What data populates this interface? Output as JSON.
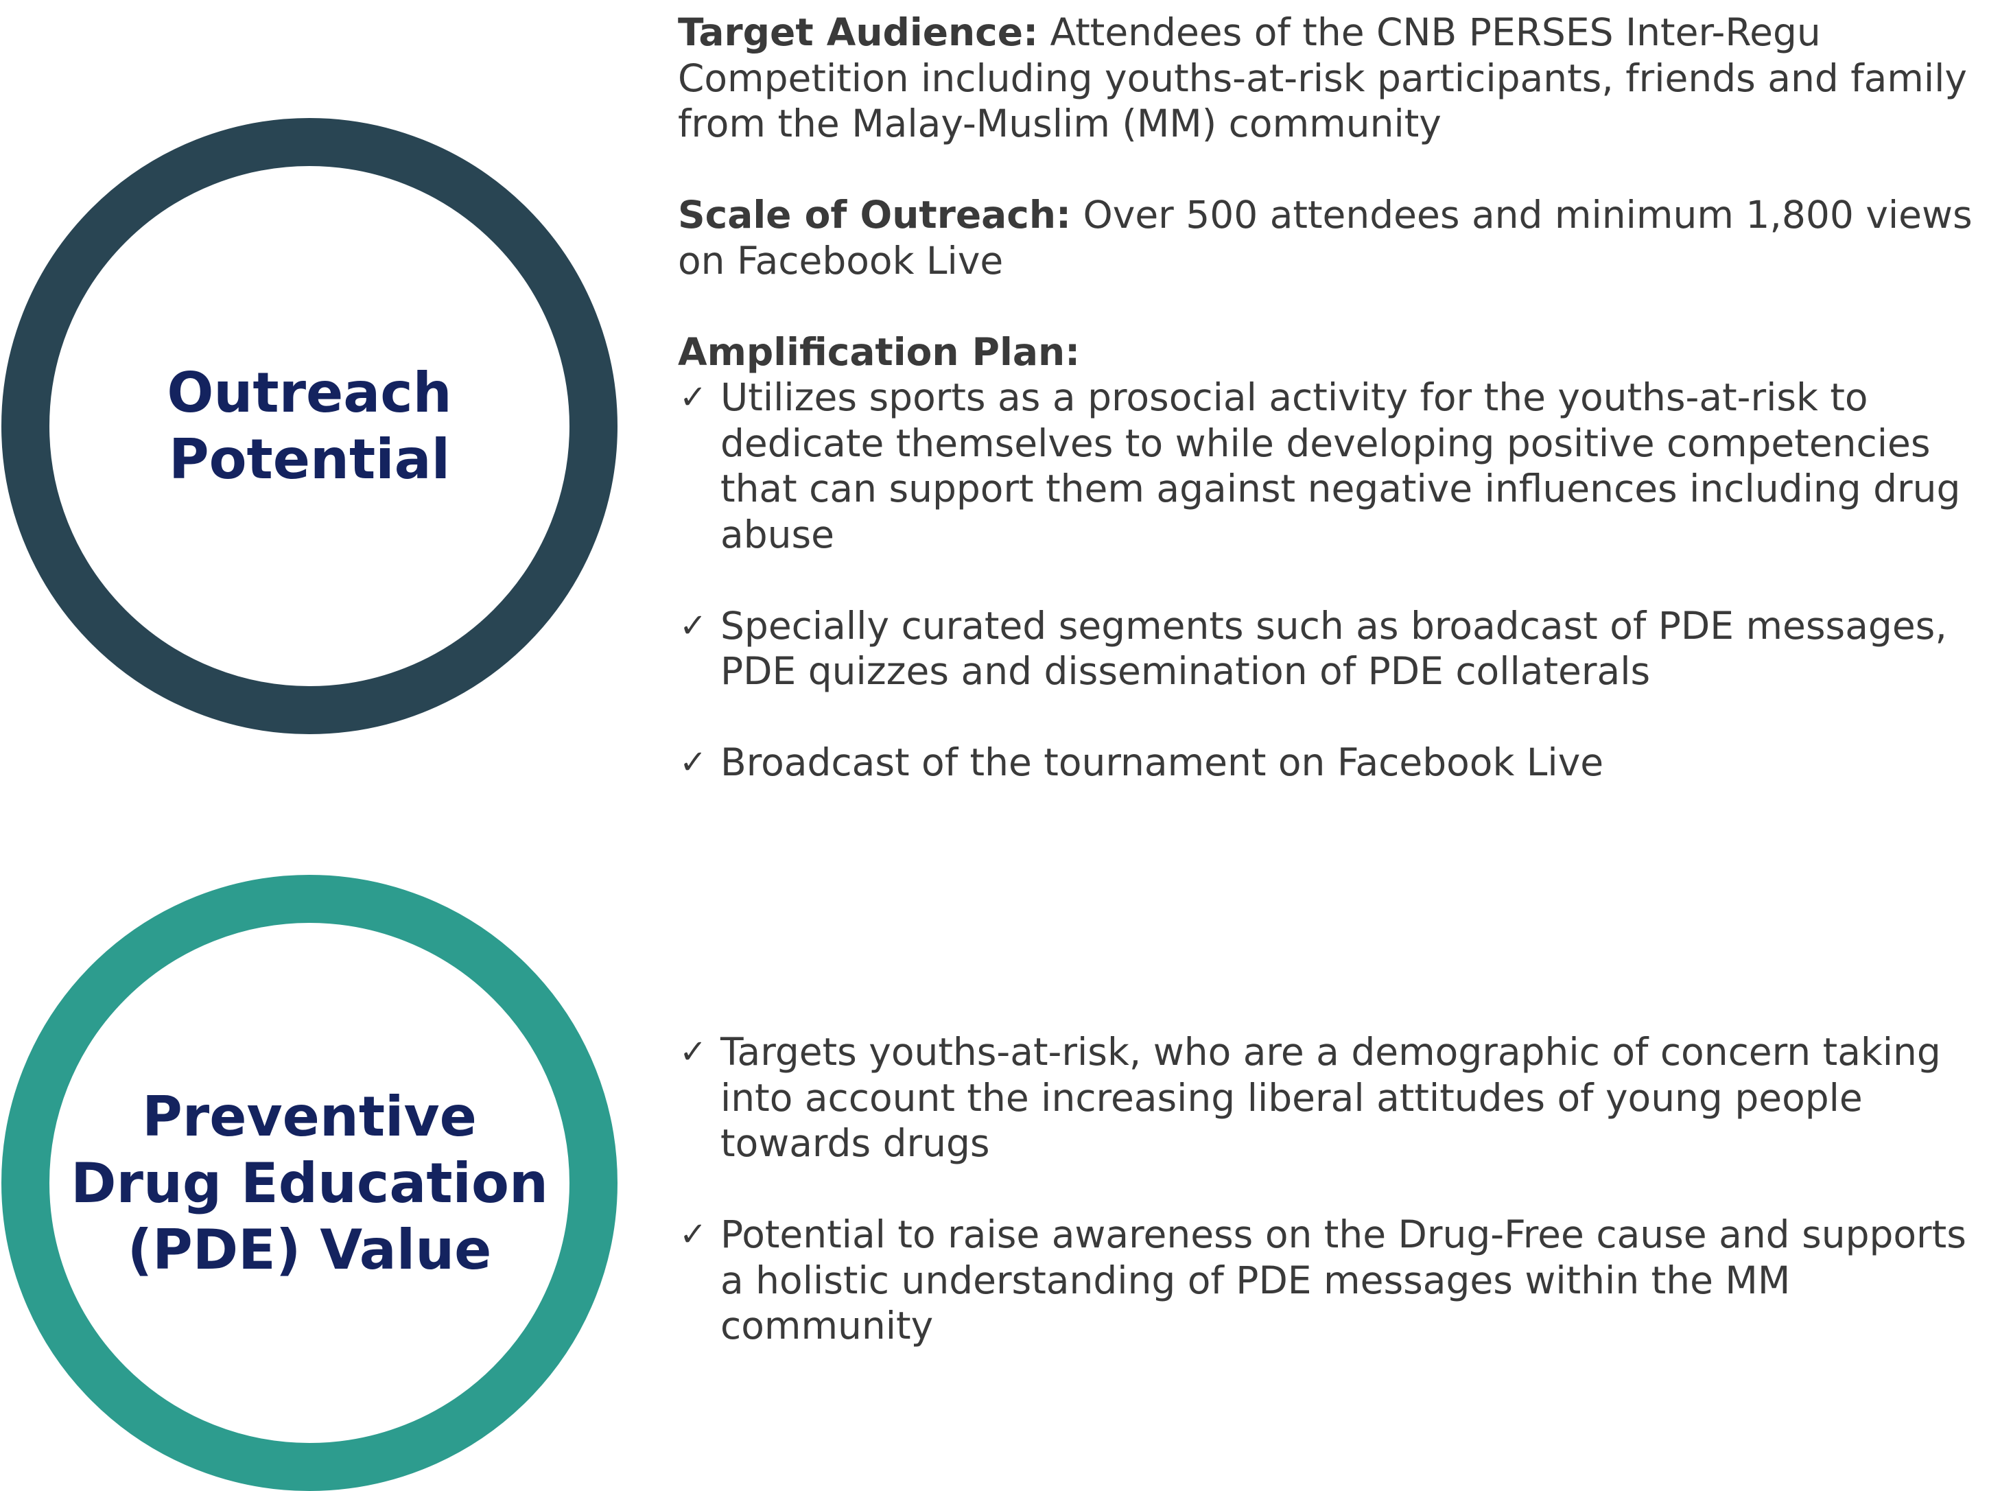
{
  "outreach": {
    "circle_title": "Outreach\nPotential",
    "target_audience": {
      "label": "Target Audience:",
      "text": " Attendees of the CNB PERSES Inter-Regu Competition including youths-at-risk participants, friends and family from the Malay-Muslim (MM) community"
    },
    "scale_of_outreach": {
      "label": "Scale of Outreach:",
      "text": " Over 500 attendees and minimum 1,800 views on Facebook Live"
    },
    "amplification_plan": {
      "label": "Amplification Plan:",
      "items": [
        "Utilizes sports as a prosocial activity for the youths-at-risk to dedicate themselves to while developing positive competencies that can support them against negative influences including drug abuse",
        "Specially curated segments such as broadcast of PDE messages, PDE quizzes and dissemination of PDE collaterals",
        "Broadcast of the tournament on Facebook Live"
      ]
    }
  },
  "pde_value": {
    "circle_title": "Preventive\nDrug Education\n(PDE) Value",
    "items": [
      "Targets youths-at-risk, who are a demographic of concern taking into account the increasing liberal attitudes of young people towards drugs",
      "Potential to raise awareness on the Drug-Free cause and supports a holistic understanding of PDE messages within the MM community"
    ]
  },
  "icons": {
    "checkmark": "check-icon",
    "checkmark_glyph": "✓"
  },
  "colors": {
    "outreach_ring": "#294553",
    "pde_ring": "#2d9c8e",
    "title_text": "#14235f",
    "body_text": "#3a3a3a"
  }
}
